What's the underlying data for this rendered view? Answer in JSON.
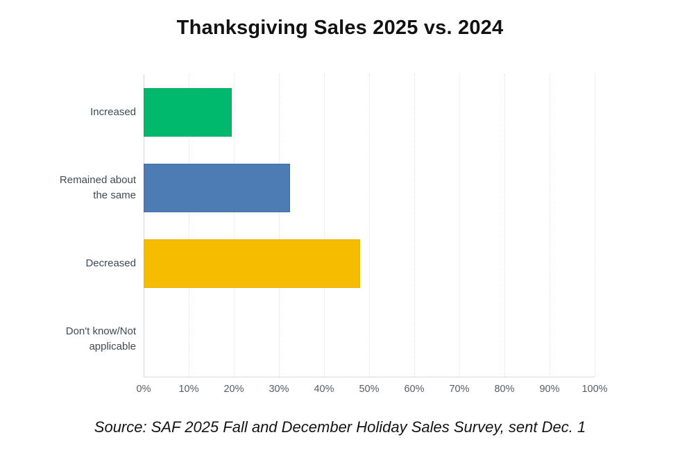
{
  "title": "Thanksgiving Sales 2025 vs. 2024",
  "source": "Source: SAF 2025 Fall and December Holiday Sales Survey, sent Dec. 1",
  "chart_data": {
    "type": "bar",
    "orientation": "horizontal",
    "title": "Thanksgiving Sales 2025 vs. 2024",
    "xlabel": "",
    "ylabel": "",
    "categories": [
      "Increased",
      "Remained about the same",
      "Decreased",
      "Don't know/Not applicable"
    ],
    "category_label_lines": [
      [
        "Increased"
      ],
      [
        "Remained about",
        "the same"
      ],
      [
        "Decreased"
      ],
      [
        "Don't know/Not",
        "applicable"
      ]
    ],
    "values": [
      19.5,
      32.5,
      48,
      0
    ],
    "unit": "%",
    "xlim": [
      0,
      100
    ],
    "x_ticks": [
      "0%",
      "10%",
      "20%",
      "30%",
      "40%",
      "50%",
      "60%",
      "70%",
      "80%",
      "90%",
      "100%"
    ],
    "grid": "vertical-dotted",
    "legend": "none",
    "bar_colors": [
      "#00b96d",
      "#4d7cb5",
      "#f6bd00",
      "#bdbdbd"
    ],
    "bar_border_colors": [
      "#0aa763",
      "#3e6ca6",
      "#eab200",
      "#bdbdbd"
    ]
  },
  "colors": {
    "background": "#ffffff",
    "gridline": "#e0e0e0",
    "axis_line": "#d6d6d6",
    "baseline": "#d9d9d9",
    "category_label": "#3d4b54",
    "tick_label": "#575c62",
    "title": "#121212",
    "source": "#141414"
  }
}
